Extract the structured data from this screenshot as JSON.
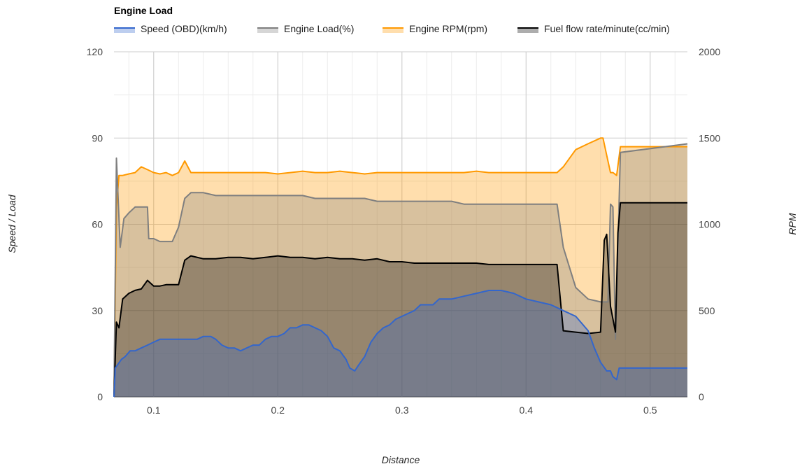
{
  "chart_data": {
    "type": "area",
    "title": "Engine Load",
    "xlabel": "Distance",
    "ylabel_left": "Speed / Load",
    "ylabel_right": "RPM",
    "xlim": [
      0.068,
      0.53
    ],
    "ylim_left": [
      0,
      120
    ],
    "ylim_right": [
      0,
      2000
    ],
    "x_ticks": [
      0.1,
      0.2,
      0.3,
      0.4,
      0.5
    ],
    "x_tick_labels": [
      "0.1",
      "0.2",
      "0.3",
      "0.4",
      "0.5"
    ],
    "y_left_ticks": [
      0,
      30,
      60,
      90,
      120
    ],
    "y_left_tick_labels": [
      "0",
      "30",
      "60",
      "90",
      "120"
    ],
    "y_right_ticks": [
      0,
      500,
      1000,
      1500,
      2000
    ],
    "y_right_tick_labels": [
      "0",
      "500",
      "1000",
      "1500",
      "2000"
    ],
    "grid": true,
    "legend_position": "top",
    "series": [
      {
        "name": "Speed (OBD)(km/h)",
        "axis": "left",
        "color": "#3366cc",
        "points": [
          [
            0.068,
            0
          ],
          [
            0.069,
            10
          ],
          [
            0.074,
            13
          ],
          [
            0.077,
            14
          ],
          [
            0.081,
            16
          ],
          [
            0.085,
            16
          ],
          [
            0.09,
            17
          ],
          [
            0.095,
            18
          ],
          [
            0.1,
            19
          ],
          [
            0.105,
            20
          ],
          [
            0.11,
            20
          ],
          [
            0.12,
            20
          ],
          [
            0.13,
            20
          ],
          [
            0.135,
            20
          ],
          [
            0.14,
            21
          ],
          [
            0.146,
            21
          ],
          [
            0.15,
            20
          ],
          [
            0.155,
            18
          ],
          [
            0.16,
            17
          ],
          [
            0.165,
            17
          ],
          [
            0.17,
            16
          ],
          [
            0.175,
            17
          ],
          [
            0.18,
            18
          ],
          [
            0.185,
            18
          ],
          [
            0.19,
            20
          ],
          [
            0.195,
            21
          ],
          [
            0.2,
            21
          ],
          [
            0.205,
            22
          ],
          [
            0.21,
            24
          ],
          [
            0.215,
            24
          ],
          [
            0.22,
            25
          ],
          [
            0.225,
            25
          ],
          [
            0.23,
            24
          ],
          [
            0.235,
            23
          ],
          [
            0.24,
            21
          ],
          [
            0.245,
            17
          ],
          [
            0.25,
            16
          ],
          [
            0.255,
            13
          ],
          [
            0.258,
            10
          ],
          [
            0.262,
            9
          ],
          [
            0.265,
            11
          ],
          [
            0.27,
            14
          ],
          [
            0.275,
            19
          ],
          [
            0.28,
            22
          ],
          [
            0.285,
            24
          ],
          [
            0.29,
            25
          ],
          [
            0.295,
            27
          ],
          [
            0.3,
            28
          ],
          [
            0.305,
            29
          ],
          [
            0.31,
            30
          ],
          [
            0.315,
            32
          ],
          [
            0.32,
            32
          ],
          [
            0.325,
            32
          ],
          [
            0.33,
            34
          ],
          [
            0.335,
            34
          ],
          [
            0.34,
            34
          ],
          [
            0.35,
            35
          ],
          [
            0.36,
            36
          ],
          [
            0.37,
            37
          ],
          [
            0.38,
            37
          ],
          [
            0.39,
            36
          ],
          [
            0.4,
            34
          ],
          [
            0.41,
            33
          ],
          [
            0.42,
            32
          ],
          [
            0.43,
            30
          ],
          [
            0.44,
            28
          ],
          [
            0.45,
            23
          ],
          [
            0.455,
            17
          ],
          [
            0.46,
            12
          ],
          [
            0.465,
            9
          ],
          [
            0.468,
            9
          ],
          [
            0.47,
            7
          ],
          [
            0.473,
            6
          ],
          [
            0.475,
            10
          ],
          [
            0.53,
            10
          ]
        ]
      },
      {
        "name": "Engine Load(%)",
        "axis": "left",
        "color": "#7f7f7f",
        "points": [
          [
            0.068,
            0
          ],
          [
            0.07,
            83
          ],
          [
            0.073,
            52
          ],
          [
            0.076,
            62
          ],
          [
            0.08,
            64
          ],
          [
            0.085,
            66
          ],
          [
            0.09,
            66
          ],
          [
            0.095,
            66
          ],
          [
            0.096,
            55
          ],
          [
            0.1,
            55
          ],
          [
            0.105,
            54
          ],
          [
            0.11,
            54
          ],
          [
            0.115,
            54
          ],
          [
            0.12,
            59
          ],
          [
            0.125,
            69
          ],
          [
            0.13,
            71
          ],
          [
            0.14,
            71
          ],
          [
            0.15,
            70
          ],
          [
            0.16,
            70
          ],
          [
            0.165,
            70
          ],
          [
            0.17,
            70
          ],
          [
            0.18,
            70
          ],
          [
            0.19,
            70
          ],
          [
            0.2,
            70
          ],
          [
            0.21,
            70
          ],
          [
            0.22,
            70
          ],
          [
            0.23,
            69
          ],
          [
            0.24,
            69
          ],
          [
            0.25,
            69
          ],
          [
            0.26,
            69
          ],
          [
            0.27,
            69
          ],
          [
            0.28,
            68
          ],
          [
            0.29,
            68
          ],
          [
            0.3,
            68
          ],
          [
            0.31,
            68
          ],
          [
            0.32,
            68
          ],
          [
            0.33,
            68
          ],
          [
            0.34,
            68
          ],
          [
            0.35,
            67
          ],
          [
            0.36,
            67
          ],
          [
            0.37,
            67
          ],
          [
            0.38,
            67
          ],
          [
            0.39,
            67
          ],
          [
            0.4,
            67
          ],
          [
            0.41,
            67
          ],
          [
            0.42,
            67
          ],
          [
            0.425,
            67
          ],
          [
            0.43,
            52
          ],
          [
            0.44,
            38
          ],
          [
            0.45,
            34
          ],
          [
            0.46,
            33
          ],
          [
            0.466,
            33
          ],
          [
            0.468,
            67
          ],
          [
            0.47,
            66
          ],
          [
            0.472,
            20
          ],
          [
            0.476,
            85
          ],
          [
            0.53,
            88
          ]
        ]
      },
      {
        "name": "Engine RPM(rpm)",
        "axis": "right",
        "color": "#ff9900",
        "points": [
          [
            0.068,
            0
          ],
          [
            0.07,
            1100
          ],
          [
            0.072,
            1283
          ],
          [
            0.075,
            1283
          ],
          [
            0.08,
            1292
          ],
          [
            0.085,
            1300
          ],
          [
            0.09,
            1333
          ],
          [
            0.095,
            1317
          ],
          [
            0.1,
            1300
          ],
          [
            0.105,
            1292
          ],
          [
            0.11,
            1300
          ],
          [
            0.115,
            1283
          ],
          [
            0.12,
            1300
          ],
          [
            0.125,
            1367
          ],
          [
            0.13,
            1300
          ],
          [
            0.14,
            1300
          ],
          [
            0.15,
            1300
          ],
          [
            0.16,
            1300
          ],
          [
            0.17,
            1300
          ],
          [
            0.18,
            1300
          ],
          [
            0.19,
            1300
          ],
          [
            0.2,
            1292
          ],
          [
            0.21,
            1300
          ],
          [
            0.22,
            1308
          ],
          [
            0.23,
            1300
          ],
          [
            0.24,
            1300
          ],
          [
            0.25,
            1308
          ],
          [
            0.26,
            1300
          ],
          [
            0.27,
            1292
          ],
          [
            0.28,
            1300
          ],
          [
            0.29,
            1300
          ],
          [
            0.3,
            1300
          ],
          [
            0.31,
            1300
          ],
          [
            0.32,
            1300
          ],
          [
            0.33,
            1300
          ],
          [
            0.34,
            1300
          ],
          [
            0.35,
            1300
          ],
          [
            0.36,
            1308
          ],
          [
            0.37,
            1300
          ],
          [
            0.38,
            1300
          ],
          [
            0.39,
            1300
          ],
          [
            0.4,
            1300
          ],
          [
            0.41,
            1300
          ],
          [
            0.42,
            1300
          ],
          [
            0.425,
            1300
          ],
          [
            0.43,
            1333
          ],
          [
            0.44,
            1433
          ],
          [
            0.45,
            1467
          ],
          [
            0.46,
            1500
          ],
          [
            0.462,
            1500
          ],
          [
            0.465,
            1400
          ],
          [
            0.468,
            1300
          ],
          [
            0.47,
            1300
          ],
          [
            0.473,
            1283
          ],
          [
            0.476,
            1450
          ],
          [
            0.53,
            1450
          ]
        ]
      },
      {
        "name": "Fuel flow rate/minute(cc/min)",
        "axis": "right",
        "color": "#000000",
        "points": [
          [
            0.068,
            0
          ],
          [
            0.07,
            433
          ],
          [
            0.072,
            400
          ],
          [
            0.075,
            567
          ],
          [
            0.08,
            600
          ],
          [
            0.085,
            617
          ],
          [
            0.09,
            625
          ],
          [
            0.095,
            675
          ],
          [
            0.1,
            642
          ],
          [
            0.105,
            642
          ],
          [
            0.11,
            650
          ],
          [
            0.115,
            650
          ],
          [
            0.12,
            650
          ],
          [
            0.125,
            792
          ],
          [
            0.13,
            817
          ],
          [
            0.14,
            800
          ],
          [
            0.15,
            800
          ],
          [
            0.16,
            808
          ],
          [
            0.17,
            808
          ],
          [
            0.18,
            800
          ],
          [
            0.19,
            808
          ],
          [
            0.2,
            817
          ],
          [
            0.21,
            808
          ],
          [
            0.22,
            808
          ],
          [
            0.23,
            800
          ],
          [
            0.24,
            808
          ],
          [
            0.25,
            800
          ],
          [
            0.26,
            800
          ],
          [
            0.27,
            792
          ],
          [
            0.28,
            800
          ],
          [
            0.29,
            783
          ],
          [
            0.3,
            783
          ],
          [
            0.31,
            775
          ],
          [
            0.32,
            775
          ],
          [
            0.33,
            775
          ],
          [
            0.34,
            775
          ],
          [
            0.35,
            775
          ],
          [
            0.36,
            775
          ],
          [
            0.37,
            767
          ],
          [
            0.38,
            767
          ],
          [
            0.39,
            767
          ],
          [
            0.4,
            767
          ],
          [
            0.41,
            767
          ],
          [
            0.42,
            767
          ],
          [
            0.425,
            767
          ],
          [
            0.43,
            383
          ],
          [
            0.44,
            375
          ],
          [
            0.45,
            367
          ],
          [
            0.46,
            375
          ],
          [
            0.463,
            908
          ],
          [
            0.465,
            942
          ],
          [
            0.468,
            525
          ],
          [
            0.472,
            375
          ],
          [
            0.474,
            950
          ],
          [
            0.476,
            1125
          ],
          [
            0.53,
            1125
          ]
        ]
      }
    ]
  }
}
